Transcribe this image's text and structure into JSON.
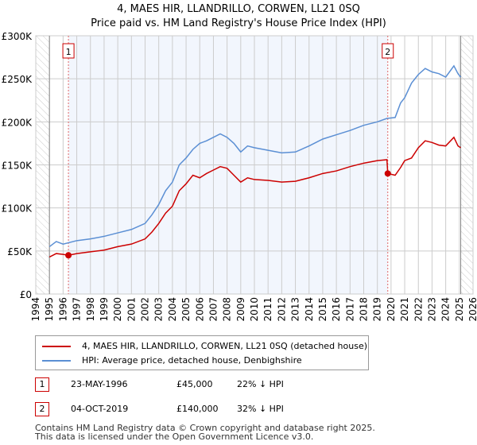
{
  "chart_data": {
    "type": "line",
    "title": "4, MAES HIR, LLANDRILLO, CORWEN, LL21 0SQ",
    "subtitle": "Price paid vs. HM Land Registry's House Price Index (HPI)",
    "xlim": [
      1994,
      2026
    ],
    "ylim": [
      0,
      300000
    ],
    "yticks": [
      {
        "v": 0,
        "l": "£0"
      },
      {
        "v": 50000,
        "l": "£50K"
      },
      {
        "v": 100000,
        "l": "£100K"
      },
      {
        "v": 150000,
        "l": "£150K"
      },
      {
        "v": 200000,
        "l": "£200K"
      },
      {
        "v": 250000,
        "l": "£250K"
      },
      {
        "v": 300000,
        "l": "£300K"
      }
    ],
    "xticks": [
      "1994",
      "1995",
      "1996",
      "1997",
      "1998",
      "1999",
      "2000",
      "2001",
      "2002",
      "2003",
      "2004",
      "2005",
      "2006",
      "2007",
      "2008",
      "2009",
      "2010",
      "2011",
      "2012",
      "2013",
      "2014",
      "2015",
      "2016",
      "2017",
      "2018",
      "2019",
      "2020",
      "2021",
      "2022",
      "2023",
      "2024",
      "2025",
      "2026"
    ],
    "grid": true,
    "series": [
      {
        "name": "4, MAES HIR, LLANDRILLO, CORWEN, LL21 0SQ (detached house)",
        "color": "#cc0000",
        "x": [
          1995,
          1995.5,
          1996,
          1996.39,
          1997,
          1998,
          1999,
          2000,
          2001,
          2002,
          2002.5,
          2003,
          2003.5,
          2004,
          2004.5,
          2005,
          2005.5,
          2006,
          2006.5,
          2007,
          2007.5,
          2008,
          2008.5,
          2009,
          2009.5,
          2010,
          2011,
          2012,
          2013,
          2014,
          2015,
          2016,
          2017,
          2018,
          2019,
          2019.7,
          2019.76,
          2020.3,
          2020.7,
          2021,
          2021.5,
          2022,
          2022.5,
          2023,
          2023.5,
          2024,
          2024.6,
          2024.9,
          2025.1
        ],
        "y": [
          43000,
          47000,
          46000,
          45000,
          47000,
          49000,
          51000,
          55000,
          58000,
          64000,
          72000,
          82000,
          94000,
          102000,
          120000,
          128000,
          138000,
          135000,
          140000,
          144000,
          148000,
          146000,
          138000,
          130000,
          135000,
          133000,
          132000,
          130000,
          131000,
          135000,
          140000,
          143000,
          148000,
          152000,
          155000,
          156000,
          140000,
          138000,
          147000,
          155000,
          158000,
          170000,
          178000,
          176000,
          173000,
          172000,
          182000,
          172000,
          170000
        ]
      },
      {
        "name": "HPI: Average price, detached house, Denbighshire",
        "color": "#5b8fd4",
        "x": [
          1995,
          1995.5,
          1996,
          1997,
          1998,
          1999,
          2000,
          2001,
          2002,
          2002.5,
          2003,
          2003.5,
          2004,
          2004.5,
          2005,
          2005.5,
          2006,
          2006.5,
          2007,
          2007.5,
          2008,
          2008.5,
          2009,
          2009.5,
          2010,
          2011,
          2012,
          2013,
          2014,
          2015,
          2016,
          2017,
          2018,
          2019,
          2019.7,
          2020.3,
          2020.7,
          2021,
          2021.5,
          2022,
          2022.5,
          2023,
          2023.5,
          2024,
          2024.6,
          2024.9,
          2025.1
        ],
        "y": [
          55000,
          61000,
          58000,
          62000,
          64000,
          67000,
          71000,
          75000,
          82000,
          92000,
          104000,
          120000,
          130000,
          150000,
          158000,
          168000,
          175000,
          178000,
          182000,
          186000,
          182000,
          175000,
          165000,
          172000,
          170000,
          167000,
          164000,
          165000,
          172000,
          180000,
          185000,
          190000,
          196000,
          200000,
          204000,
          205000,
          222000,
          228000,
          245000,
          255000,
          262000,
          258000,
          256000,
          252000,
          265000,
          256000,
          252000
        ]
      }
    ],
    "annotations": [
      {
        "label": "1",
        "x": 1996.39,
        "y": 45000
      },
      {
        "label": "2",
        "x": 2019.76,
        "y": 140000
      }
    ]
  },
  "table": [
    {
      "num": "1",
      "date": "23-MAY-1996",
      "price": "£45,000",
      "hpi": "22% ↓ HPI"
    },
    {
      "num": "2",
      "date": "04-OCT-2019",
      "price": "£140,000",
      "hpi": "32% ↓ HPI"
    }
  ],
  "footer": [
    "Contains HM Land Registry data © Crown copyright and database right 2025.",
    "This data is licensed under the Open Government Licence v3.0."
  ]
}
